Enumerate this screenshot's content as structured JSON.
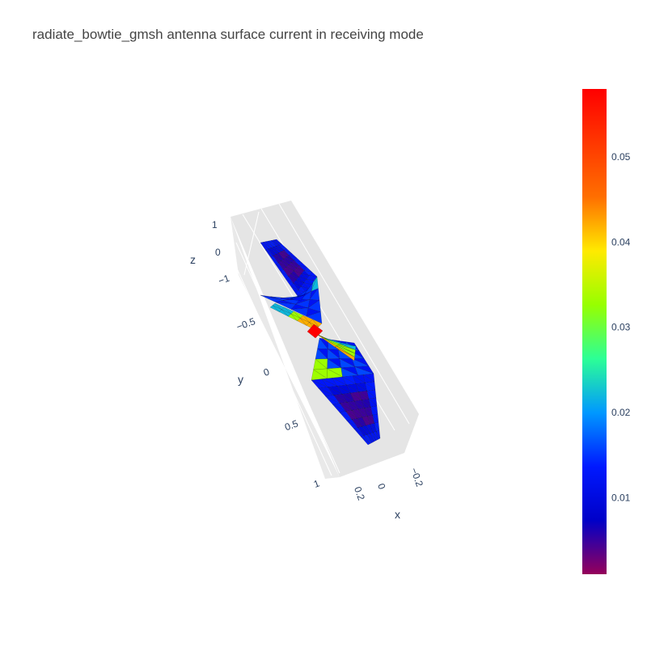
{
  "chart_data": {
    "type": "mesh3d",
    "title": "radiate_bowtie_gmsh antenna surface current in receiving mode",
    "axes": {
      "x": {
        "label": "x",
        "ticks": [
          "0.2",
          "0",
          "−0.2"
        ]
      },
      "y": {
        "label": "y",
        "ticks": [
          "−0.5",
          "0",
          "0.5",
          "1"
        ]
      },
      "z": {
        "label": "z",
        "ticks": [
          "1",
          "0",
          "−1"
        ]
      }
    },
    "colorscale": "rainbow",
    "colorbar": {
      "min": 0.001,
      "max": 0.058,
      "ticks": [
        {
          "value": 0.01,
          "label": "0.01"
        },
        {
          "value": 0.02,
          "label": "0.02"
        },
        {
          "value": 0.03,
          "label": "0.03"
        },
        {
          "value": 0.04,
          "label": "0.04"
        },
        {
          "value": 0.05,
          "label": "0.05"
        }
      ]
    },
    "surface_current": {
      "arm_center": 0.004,
      "arm_body": 0.009,
      "arm_edge": 0.012,
      "neck_outer": 0.022,
      "neck_mid": 0.033,
      "neck_inner": 0.042,
      "feed_gap": 0.058
    },
    "colors": {
      "background": "#ffffff",
      "wall": "#e5e5e5",
      "grid": "#ffffff",
      "text": "#2a3f5f",
      "title": "#444444"
    }
  }
}
